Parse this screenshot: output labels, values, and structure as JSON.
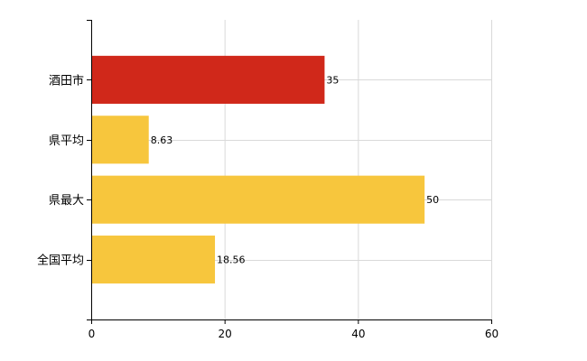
{
  "chart_data": {
    "type": "bar",
    "orientation": "horizontal",
    "categories": [
      "酒田市",
      "県平均",
      "県最大",
      "全国平均"
    ],
    "values": [
      35,
      8.63,
      50,
      18.56
    ],
    "value_labels": [
      "35",
      "8.63",
      "50",
      "18.56"
    ],
    "bar_colors": [
      "#d0281a",
      "#f7c63d",
      "#f7c63d",
      "#f7c63d"
    ],
    "xlim": [
      0,
      60
    ],
    "x_ticks": [
      0,
      20,
      40,
      60
    ],
    "title": "",
    "xlabel": "",
    "ylabel": "",
    "grid": true,
    "legend": "none"
  }
}
